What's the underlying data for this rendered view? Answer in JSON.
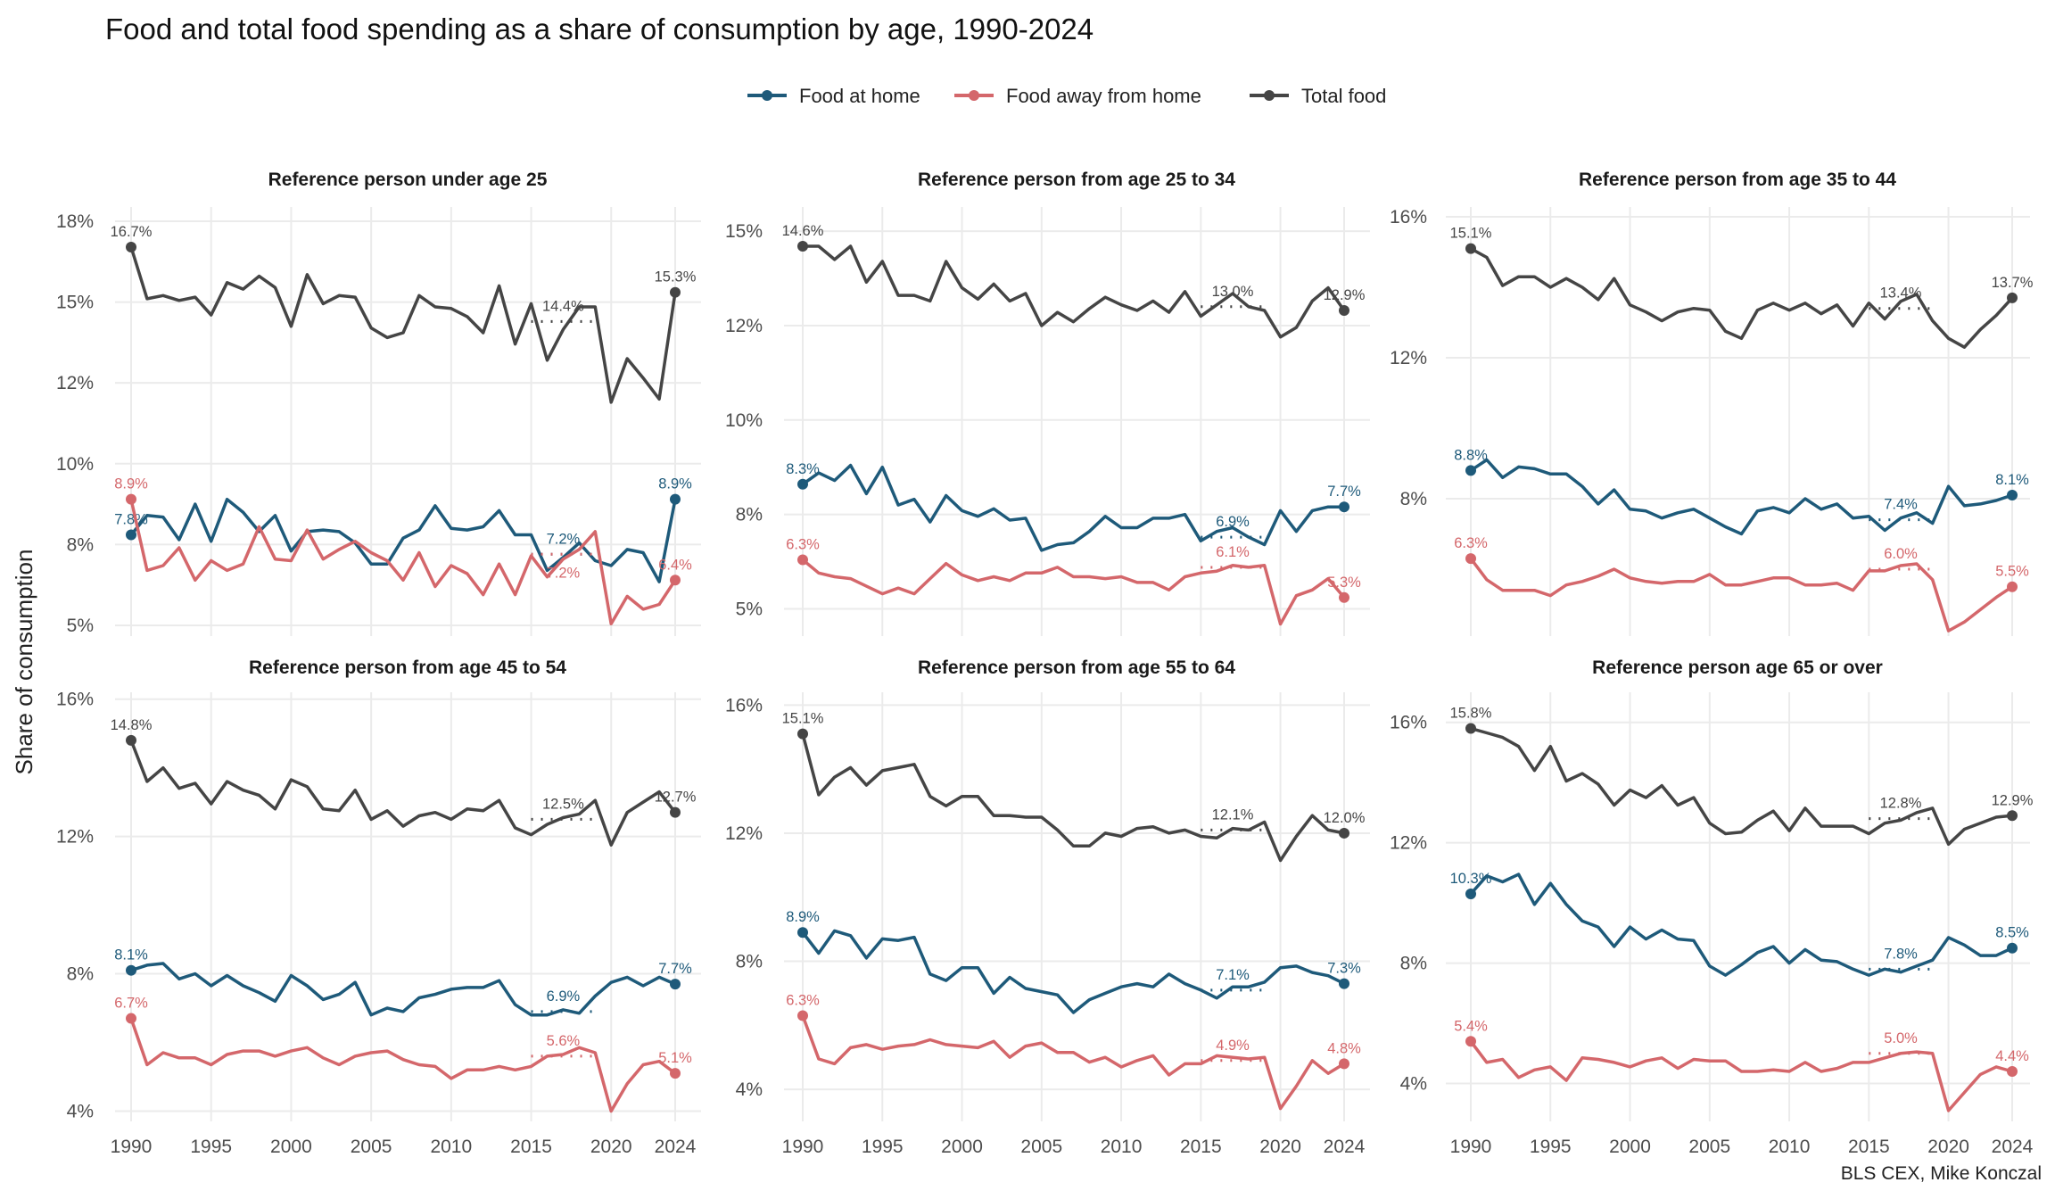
{
  "chart_data": {
    "type": "line",
    "title": "Food and total food spending as a share of consumption by age, 1990-2024",
    "ylabel": "Share of consumption",
    "xlabel": "",
    "caption": "BLS CEX, Mike Konczal",
    "legend_position": "top",
    "legend": [
      {
        "name": "Food at home",
        "color": "#1e5a7a"
      },
      {
        "name": "Food away from home",
        "color": "#d4676b"
      },
      {
        "name": "Total food",
        "color": "#454545"
      }
    ],
    "x": [
      1990,
      1991,
      1992,
      1993,
      1994,
      1995,
      1996,
      1997,
      1998,
      1999,
      2000,
      2001,
      2002,
      2003,
      2004,
      2005,
      2006,
      2007,
      2008,
      2009,
      2010,
      2011,
      2012,
      2013,
      2014,
      2015,
      2016,
      2017,
      2018,
      2019,
      2020,
      2021,
      2022,
      2023,
      2024
    ],
    "x_ticks": [
      1990,
      1995,
      2000,
      2005,
      2010,
      2015,
      2020,
      2024
    ],
    "x_tick_labels": [
      "1990",
      "1995",
      "2000",
      "2005",
      "2010",
      "2015",
      "2020",
      "2024"
    ],
    "avg_period": [
      2015,
      2019
    ],
    "panels": [
      {
        "title": "Reference person under age 25",
        "ylim": [
          4.67,
          17.94
        ],
        "y_ticks": [
          17.5,
          15,
          12.5,
          10,
          7.5,
          5
        ],
        "y_tick_labels": [
          "18%",
          "15%",
          "12%",
          "10%",
          "8%",
          "5%"
        ],
        "series": [
          {
            "name": "Food at home",
            "values": [
              7.8,
              8.4,
              8.35,
              7.65,
              8.75,
              7.6,
              8.9,
              8.5,
              7.9,
              8.4,
              7.3,
              7.9,
              7.95,
              7.9,
              7.55,
              6.9,
              6.9,
              7.7,
              7.95,
              8.7,
              8.0,
              7.95,
              8.05,
              8.55,
              7.8,
              7.8,
              6.7,
              7.1,
              7.55,
              7.0,
              6.85,
              7.35,
              7.25,
              6.35,
              8.9
            ],
            "start_label": "7.8%",
            "end_label": "8.9%",
            "avg": 7.2,
            "avg_label": "7.2%"
          },
          {
            "name": "Food away from home",
            "values": [
              8.9,
              6.7,
              6.85,
              7.4,
              6.4,
              7.0,
              6.7,
              6.9,
              8.05,
              7.05,
              7.0,
              7.95,
              7.05,
              7.35,
              7.6,
              7.25,
              7.0,
              6.4,
              7.25,
              6.2,
              6.85,
              6.6,
              5.95,
              6.9,
              5.95,
              7.15,
              6.5,
              7.05,
              7.35,
              7.9,
              5.05,
              5.9,
              5.5,
              5.65,
              6.4
            ],
            "start_label": "8.9%",
            "end_label": "6.4%",
            "avg": 7.2,
            "avg_label": "7.2%"
          },
          {
            "name": "Total food",
            "values": [
              16.7,
              15.1,
              15.2,
              15.05,
              15.15,
              14.6,
              15.6,
              15.4,
              15.8,
              15.45,
              14.25,
              15.85,
              14.95,
              15.2,
              15.15,
              14.2,
              13.9,
              14.05,
              15.2,
              14.85,
              14.8,
              14.55,
              14.05,
              15.5,
              13.7,
              14.95,
              13.2,
              14.15,
              14.85,
              14.85,
              11.9,
              13.25,
              12.65,
              12.0,
              15.3
            ],
            "start_label": "16.7%",
            "end_label": "15.3%",
            "avg": 14.4,
            "avg_label": "14.4%"
          }
        ]
      },
      {
        "title": "Reference person from age 25 to 34",
        "ylim": [
          4.28,
          15.64
        ],
        "y_ticks": [
          15,
          12.5,
          10,
          7.5,
          5
        ],
        "y_tick_labels": [
          "15%",
          "12%",
          "10%",
          "8%",
          "5%"
        ],
        "series": [
          {
            "name": "Food at home",
            "values": [
              8.3,
              8.6,
              8.4,
              8.8,
              8.05,
              8.75,
              7.75,
              7.9,
              7.3,
              8.0,
              7.6,
              7.45,
              7.65,
              7.35,
              7.4,
              6.55,
              6.7,
              6.75,
              7.05,
              7.45,
              7.15,
              7.15,
              7.4,
              7.4,
              7.5,
              6.8,
              7.05,
              7.15,
              6.9,
              6.7,
              7.6,
              7.05,
              7.6,
              7.7,
              7.7
            ],
            "start_label": "8.3%",
            "end_label": "7.7%",
            "avg": 6.9,
            "avg_label": "6.9%"
          },
          {
            "name": "Food away from home",
            "values": [
              6.3,
              5.95,
              5.85,
              5.8,
              5.6,
              5.4,
              5.55,
              5.4,
              5.8,
              6.2,
              5.9,
              5.75,
              5.85,
              5.75,
              5.95,
              5.95,
              6.1,
              5.85,
              5.85,
              5.8,
              5.85,
              5.7,
              5.7,
              5.5,
              5.85,
              5.95,
              6.0,
              6.15,
              6.1,
              6.15,
              4.6,
              5.35,
              5.5,
              5.8,
              5.3
            ],
            "start_label": "6.3%",
            "end_label": "5.3%",
            "avg": 6.1,
            "avg_label": "6.1%"
          },
          {
            "name": "Total food",
            "values": [
              14.6,
              14.6,
              14.25,
              14.6,
              13.65,
              14.2,
              13.3,
              13.3,
              13.15,
              14.2,
              13.5,
              13.2,
              13.6,
              13.15,
              13.35,
              12.5,
              12.85,
              12.6,
              12.95,
              13.25,
              13.05,
              12.9,
              13.15,
              12.85,
              13.4,
              12.75,
              13.05,
              13.35,
              13.0,
              12.9,
              12.2,
              12.45,
              13.15,
              13.5,
              12.9
            ],
            "start_label": "14.6%",
            "end_label": "12.9%",
            "avg": 13.0,
            "avg_label": "13.0%"
          }
        ]
      },
      {
        "title": "Reference person from age 35 to 44",
        "ylim": [
          4.1,
          16.28
        ],
        "y_ticks": [
          16,
          12,
          8
        ],
        "y_tick_labels": [
          "16%",
          "12%",
          "8%"
        ],
        "series": [
          {
            "name": "Food at home",
            "values": [
              8.8,
              9.1,
              8.6,
              8.9,
              8.85,
              8.7,
              8.7,
              8.35,
              7.85,
              8.25,
              7.7,
              7.65,
              7.45,
              7.6,
              7.7,
              7.45,
              7.2,
              7.0,
              7.65,
              7.75,
              7.6,
              8.0,
              7.7,
              7.85,
              7.45,
              7.5,
              7.1,
              7.45,
              7.6,
              7.3,
              8.35,
              7.8,
              7.85,
              7.95,
              8.1
            ],
            "start_label": "8.8%",
            "end_label": "8.1%",
            "avg": 7.4,
            "avg_label": "7.4%"
          },
          {
            "name": "Food away from home",
            "values": [
              6.3,
              5.7,
              5.4,
              5.4,
              5.4,
              5.25,
              5.55,
              5.65,
              5.8,
              6.0,
              5.75,
              5.65,
              5.6,
              5.65,
              5.65,
              5.85,
              5.55,
              5.55,
              5.65,
              5.75,
              5.75,
              5.55,
              5.55,
              5.6,
              5.4,
              5.95,
              5.95,
              6.1,
              6.15,
              5.7,
              4.25,
              4.5,
              4.85,
              5.2,
              5.5
            ],
            "start_label": "6.3%",
            "end_label": "5.5%",
            "avg": 6.0,
            "avg_label": "6.0%"
          },
          {
            "name": "Total food",
            "values": [
              15.1,
              14.85,
              14.05,
              14.3,
              14.3,
              14.0,
              14.25,
              14.0,
              13.65,
              14.25,
              13.5,
              13.3,
              13.05,
              13.3,
              13.4,
              13.35,
              12.75,
              12.55,
              13.35,
              13.55,
              13.35,
              13.55,
              13.25,
              13.5,
              12.9,
              13.55,
              13.1,
              13.6,
              13.8,
              13.05,
              12.55,
              12.3,
              12.8,
              13.2,
              13.7
            ],
            "start_label": "15.1%",
            "end_label": "13.7%",
            "avg": 13.4,
            "avg_label": "13.4%"
          }
        ]
      },
      {
        "title": "Reference person from age 45 to 54",
        "ylim": [
          3.7,
          16.2
        ],
        "y_ticks": [
          16,
          12,
          8,
          4
        ],
        "y_tick_labels": [
          "16%",
          "12%",
          "8%",
          "4%"
        ],
        "series": [
          {
            "name": "Food at home",
            "values": [
              8.1,
              8.25,
              8.3,
              7.85,
              8.0,
              7.65,
              7.95,
              7.65,
              7.45,
              7.2,
              7.95,
              7.65,
              7.25,
              7.4,
              7.75,
              6.8,
              7.0,
              6.9,
              7.3,
              7.4,
              7.55,
              7.6,
              7.6,
              7.8,
              7.1,
              6.8,
              6.8,
              6.95,
              6.85,
              7.35,
              7.75,
              7.9,
              7.65,
              7.9,
              7.7
            ],
            "start_label": "8.1%",
            "end_label": "7.7%",
            "avg": 6.9,
            "avg_label": "6.9%"
          },
          {
            "name": "Food away from home",
            "values": [
              6.7,
              5.35,
              5.7,
              5.55,
              5.55,
              5.35,
              5.65,
              5.75,
              5.75,
              5.6,
              5.75,
              5.85,
              5.55,
              5.35,
              5.6,
              5.7,
              5.75,
              5.5,
              5.35,
              5.3,
              4.95,
              5.2,
              5.2,
              5.3,
              5.2,
              5.3,
              5.6,
              5.65,
              5.85,
              5.7,
              4.0,
              4.8,
              5.35,
              5.45,
              5.1
            ],
            "start_label": "6.7%",
            "end_label": "5.1%",
            "avg": 5.6,
            "avg_label": "5.6%"
          },
          {
            "name": "Total food",
            "values": [
              14.8,
              13.6,
              14.0,
              13.4,
              13.55,
              12.95,
              13.6,
              13.35,
              13.2,
              12.8,
              13.65,
              13.45,
              12.8,
              12.75,
              13.35,
              12.5,
              12.75,
              12.3,
              12.6,
              12.7,
              12.5,
              12.8,
              12.75,
              13.05,
              12.25,
              12.05,
              12.35,
              12.55,
              12.65,
              13.05,
              11.75,
              12.7,
              13.0,
              13.3,
              12.7
            ],
            "start_label": "14.8%",
            "end_label": "12.7%",
            "avg": 12.5,
            "avg_label": "12.5%"
          }
        ]
      },
      {
        "title": "Reference person from age 55 to 64",
        "ylim": [
          3.0,
          16.4
        ],
        "y_ticks": [
          16,
          12,
          8,
          4
        ],
        "y_tick_labels": [
          "16%",
          "12%",
          "8%",
          "4%"
        ],
        "series": [
          {
            "name": "Food at home",
            "values": [
              8.9,
              8.25,
              8.95,
              8.8,
              8.1,
              8.7,
              8.65,
              8.75,
              7.6,
              7.4,
              7.8,
              7.8,
              7.0,
              7.5,
              7.15,
              7.05,
              6.95,
              6.4,
              6.8,
              7.0,
              7.2,
              7.3,
              7.2,
              7.6,
              7.3,
              7.1,
              6.85,
              7.2,
              7.2,
              7.35,
              7.8,
              7.85,
              7.65,
              7.55,
              7.3
            ],
            "start_label": "8.9%",
            "end_label": "7.3%",
            "avg": 7.1,
            "avg_label": "7.1%"
          },
          {
            "name": "Food away from home",
            "values": [
              6.3,
              4.95,
              4.8,
              5.3,
              5.4,
              5.25,
              5.35,
              5.4,
              5.55,
              5.4,
              5.35,
              5.3,
              5.5,
              5.0,
              5.35,
              5.45,
              5.15,
              5.15,
              4.85,
              5.0,
              4.7,
              4.9,
              5.05,
              4.45,
              4.8,
              4.8,
              5.05,
              5.0,
              4.95,
              5.0,
              3.4,
              4.1,
              4.9,
              4.5,
              4.8
            ],
            "start_label": "6.3%",
            "end_label": "4.8%",
            "avg": 4.9,
            "avg_label": "4.9%"
          },
          {
            "name": "Total food",
            "values": [
              15.1,
              13.2,
              13.75,
              14.05,
              13.5,
              13.95,
              14.05,
              14.15,
              13.15,
              12.85,
              13.15,
              13.15,
              12.55,
              12.55,
              12.5,
              12.5,
              12.1,
              11.6,
              11.6,
              12.0,
              11.9,
              12.15,
              12.2,
              12.0,
              12.1,
              11.9,
              11.85,
              12.15,
              12.1,
              12.35,
              11.15,
              11.9,
              12.55,
              12.1,
              12.0
            ],
            "start_label": "15.1%",
            "end_label": "12.0%",
            "avg": 12.1,
            "avg_label": "12.1%"
          }
        ]
      },
      {
        "title": "Reference person age 65 or over",
        "ylim": [
          2.74,
          17.0
        ],
        "y_ticks": [
          16,
          12,
          8,
          4
        ],
        "y_tick_labels": [
          "16%",
          "12%",
          "8%",
          "4%"
        ],
        "series": [
          {
            "name": "Food at home",
            "values": [
              10.3,
              10.9,
              10.7,
              10.95,
              9.95,
              10.65,
              9.95,
              9.4,
              9.2,
              8.55,
              9.2,
              8.8,
              9.1,
              8.8,
              8.75,
              7.9,
              7.6,
              7.95,
              8.35,
              8.55,
              8.0,
              8.45,
              8.1,
              8.05,
              7.8,
              7.6,
              7.8,
              7.7,
              7.9,
              8.1,
              8.85,
              8.6,
              8.25,
              8.25,
              8.5
            ],
            "start_label": "10.3%",
            "end_label": "8.5%",
            "avg": 7.8,
            "avg_label": "7.8%"
          },
          {
            "name": "Food away from home",
            "values": [
              5.4,
              4.7,
              4.8,
              4.2,
              4.45,
              4.55,
              4.1,
              4.85,
              4.8,
              4.7,
              4.55,
              4.75,
              4.85,
              4.5,
              4.8,
              4.75,
              4.75,
              4.4,
              4.4,
              4.45,
              4.4,
              4.7,
              4.4,
              4.5,
              4.7,
              4.7,
              4.85,
              5.0,
              5.05,
              5.0,
              3.1,
              3.7,
              4.3,
              4.55,
              4.4
            ],
            "start_label": "5.4%",
            "end_label": "4.4%",
            "avg": 5.0,
            "avg_label": "5.0%"
          },
          {
            "name": "Total food",
            "values": [
              15.8,
              15.65,
              15.5,
              15.2,
              14.4,
              15.2,
              14.05,
              14.3,
              13.95,
              13.25,
              13.75,
              13.5,
              13.9,
              13.25,
              13.5,
              12.65,
              12.3,
              12.35,
              12.75,
              13.05,
              12.4,
              13.15,
              12.55,
              12.55,
              12.55,
              12.3,
              12.65,
              12.75,
              13.0,
              13.15,
              11.95,
              12.45,
              12.65,
              12.85,
              12.9
            ],
            "start_label": "15.8%",
            "end_label": "12.9%",
            "avg": 12.8,
            "avg_label": "12.8%"
          }
        ]
      }
    ]
  }
}
